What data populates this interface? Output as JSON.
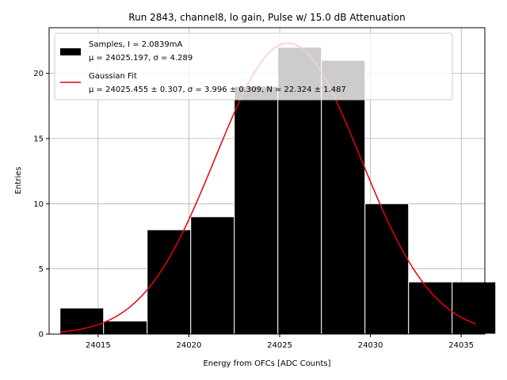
{
  "chart_data": {
    "type": "bar",
    "title": "Run 2843, channel8, lo gain, Pulse w/ 15.0 dB Attenuation",
    "xlabel": "Energy from OFCs [ADC Counts]",
    "ylabel": "Entries",
    "xlim": [
      24012.3,
      24036.3
    ],
    "ylim": [
      0,
      23.5
    ],
    "xticks": [
      24015,
      24020,
      24025,
      24030,
      24035
    ],
    "yticks": [
      0,
      5,
      10,
      15,
      20
    ],
    "grid": true,
    "legend_position": "top-left",
    "bins": [
      {
        "x0": 24012.9,
        "x1": 24015.3,
        "value": 2
      },
      {
        "x0": 24015.3,
        "x1": 24017.7,
        "value": 1
      },
      {
        "x0": 24017.7,
        "x1": 24020.1,
        "value": 8
      },
      {
        "x0": 24020.1,
        "x1": 24022.5,
        "value": 9
      },
      {
        "x0": 24022.5,
        "x1": 24024.9,
        "value": 19
      },
      {
        "x0": 24024.9,
        "x1": 24027.3,
        "value": 22
      },
      {
        "x0": 24027.3,
        "x1": 24029.7,
        "value": 21
      },
      {
        "x0": 24029.7,
        "x1": 24032.1,
        "value": 10
      },
      {
        "x0": 24032.1,
        "x1": 24034.5,
        "value": 4
      },
      {
        "x0": 24034.5,
        "x1": 24036.9,
        "value": 4
      }
    ],
    "fit": {
      "mu": 24025.455,
      "sigma": 3.996,
      "N": 22.324,
      "x_range": [
        24012.9,
        24035.8
      ]
    },
    "series": [
      {
        "name": "Samples, I = 2.0839mA",
        "stats": "μ = 24025.197, σ = 4.289",
        "color": "#000000"
      },
      {
        "name": "Gaussian Fit",
        "stats": "μ = 24025.455 ± 0.307, σ = 3.996 ± 0.309, N = 22.324 ± 1.487",
        "color": "#e8000b"
      }
    ]
  }
}
